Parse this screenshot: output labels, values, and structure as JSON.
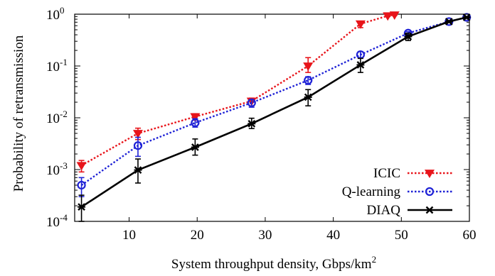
{
  "chart_data": {
    "type": "line",
    "xlabel": "System throughput density, Gbps/km",
    "xlabel_superscript": "2",
    "ylabel": "Probability of retransmission",
    "xlim": [
      2,
      60
    ],
    "ylim": [
      0.0001,
      1
    ],
    "yscale": "log",
    "grid": false,
    "legend_position": "bottom-right",
    "x_ticks": [
      10,
      20,
      30,
      40,
      50,
      60
    ],
    "x_tick_labels": [
      "10",
      "20",
      "30",
      "40",
      "50",
      "60"
    ],
    "y_ticks": [
      {
        "value": 0.0001,
        "base": "10",
        "exp": "-4"
      },
      {
        "value": 0.001,
        "base": "10",
        "exp": "-3"
      },
      {
        "value": 0.01,
        "base": "10",
        "exp": "-2"
      },
      {
        "value": 0.1,
        "base": "10",
        "exp": "-1"
      },
      {
        "value": 1,
        "base": "10",
        "exp": "0"
      }
    ],
    "series": [
      {
        "name": "ICIC",
        "color": "#e8141a",
        "line_style": "dotted",
        "marker": "triangle-down",
        "x": [
          3,
          11.3,
          19.7,
          28,
          36.3,
          44,
          48,
          49
        ],
        "y": [
          0.0012,
          0.005,
          0.0105,
          0.021,
          0.1,
          0.65,
          0.93,
          0.97
        ],
        "err_low": [
          0.0009,
          0.0038,
          0.009,
          0.017,
          0.075,
          0.55,
          0.9,
          0.95
        ],
        "err_high": [
          0.0015,
          0.0063,
          0.012,
          0.024,
          0.145,
          0.72,
          0.97,
          0.99
        ]
      },
      {
        "name": "Q-learning",
        "color": "#1f22d6",
        "line_style": "dotted",
        "marker": "circle",
        "x": [
          3,
          11.3,
          19.7,
          28,
          36.3,
          44,
          51,
          57,
          59.6
        ],
        "y": [
          0.0005,
          0.0029,
          0.008,
          0.0195,
          0.053,
          0.165,
          0.43,
          0.72,
          0.87
        ],
        "err_low": [
          0.0003,
          0.0018,
          0.0066,
          0.016,
          0.044,
          0.145,
          0.4,
          0.69,
          0.85
        ],
        "err_high": [
          0.0007,
          0.0042,
          0.0096,
          0.0225,
          0.062,
          0.19,
          0.46,
          0.75,
          0.89
        ]
      },
      {
        "name": "DIAQ",
        "color": "#000000",
        "line_style": "solid",
        "marker": "x-star",
        "x": [
          3,
          11.3,
          19.7,
          28,
          36.3,
          44,
          51,
          57,
          59.6
        ],
        "y": [
          0.00019,
          0.00098,
          0.0027,
          0.0077,
          0.025,
          0.105,
          0.37,
          0.72,
          0.87
        ],
        "err_low": [
          0.0001,
          0.00055,
          0.0019,
          0.0062,
          0.017,
          0.075,
          0.31,
          0.69,
          0.85
        ],
        "err_high": [
          0.00032,
          0.0016,
          0.0039,
          0.0098,
          0.035,
          0.14,
          0.43,
          0.75,
          0.89
        ]
      }
    ]
  }
}
